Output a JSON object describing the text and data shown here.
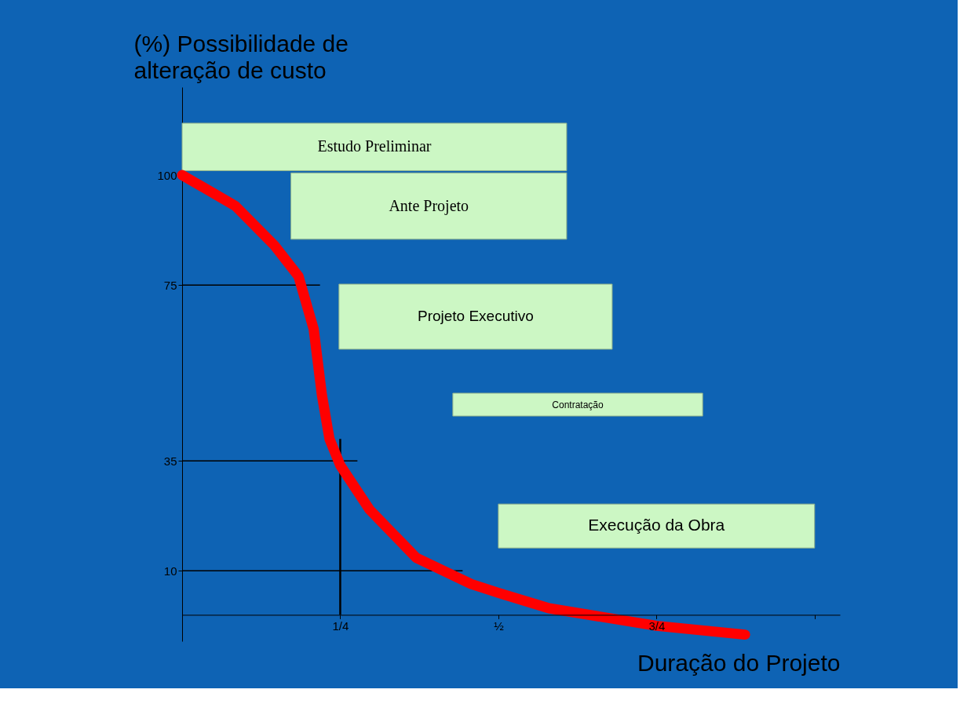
{
  "chart_data": {
    "type": "line",
    "xlabel": "Duração do Projeto",
    "ylabel": "(%) Possibilidade de alteração de custo",
    "xlim": [
      0,
      1.04
    ],
    "ylim": [
      -6,
      120
    ],
    "xticks": [
      {
        "value": 0.25,
        "label": "1/4"
      },
      {
        "value": 0.5,
        "label": "½"
      },
      {
        "value": 0.75,
        "label": "3/4"
      },
      {
        "value": 1,
        "label": null
      }
    ],
    "yticks": [
      10,
      35,
      75,
      100
    ],
    "grid": false,
    "line_style": "solid",
    "series": [
      {
        "color": "#ff0000",
        "x": [
          0,
          0.084,
          0.146,
          0.184,
          0.208,
          0.221,
          0.233,
          0.25,
          0.296,
          0.37,
          0.457,
          0.5,
          0.58,
          0.75,
          0.89
        ],
        "values": [
          100,
          93,
          84,
          77,
          65,
          50,
          40,
          34,
          24,
          13,
          7,
          5,
          1.5,
          -2.5,
          -4.5
        ]
      }
    ],
    "ref_lines": [
      {
        "axis": "y",
        "value": 75,
        "label": null,
        "color": "#000000"
      },
      {
        "axis": "y",
        "value": 35,
        "label": null,
        "color": "#000000"
      },
      {
        "axis": "y",
        "value": 10,
        "label": null,
        "color": "#000000"
      },
      {
        "axis": "x",
        "value": 0.25,
        "label": null,
        "color": "#000000"
      }
    ],
    "bands": [
      {
        "axis": "x",
        "from": 0,
        "to": 0.608,
        "label": "Estudo Preliminar",
        "color": "#ccf7c4"
      },
      {
        "axis": "x",
        "from": 0.172,
        "to": 0.608,
        "label": "Ante Projeto",
        "color": "#ccf7c4"
      },
      {
        "axis": "x",
        "from": 0.248,
        "to": 0.68,
        "label": "Projeto Executivo",
        "color": "#ccf7c4"
      },
      {
        "axis": "x",
        "from": 0.428,
        "to": 0.823,
        "label": "Contratação",
        "color": "#ccf7c4"
      },
      {
        "axis": "x",
        "from": 0.5,
        "to": 1.0,
        "label": "Execução da Obra",
        "color": "#ccf7c4"
      }
    ]
  }
}
